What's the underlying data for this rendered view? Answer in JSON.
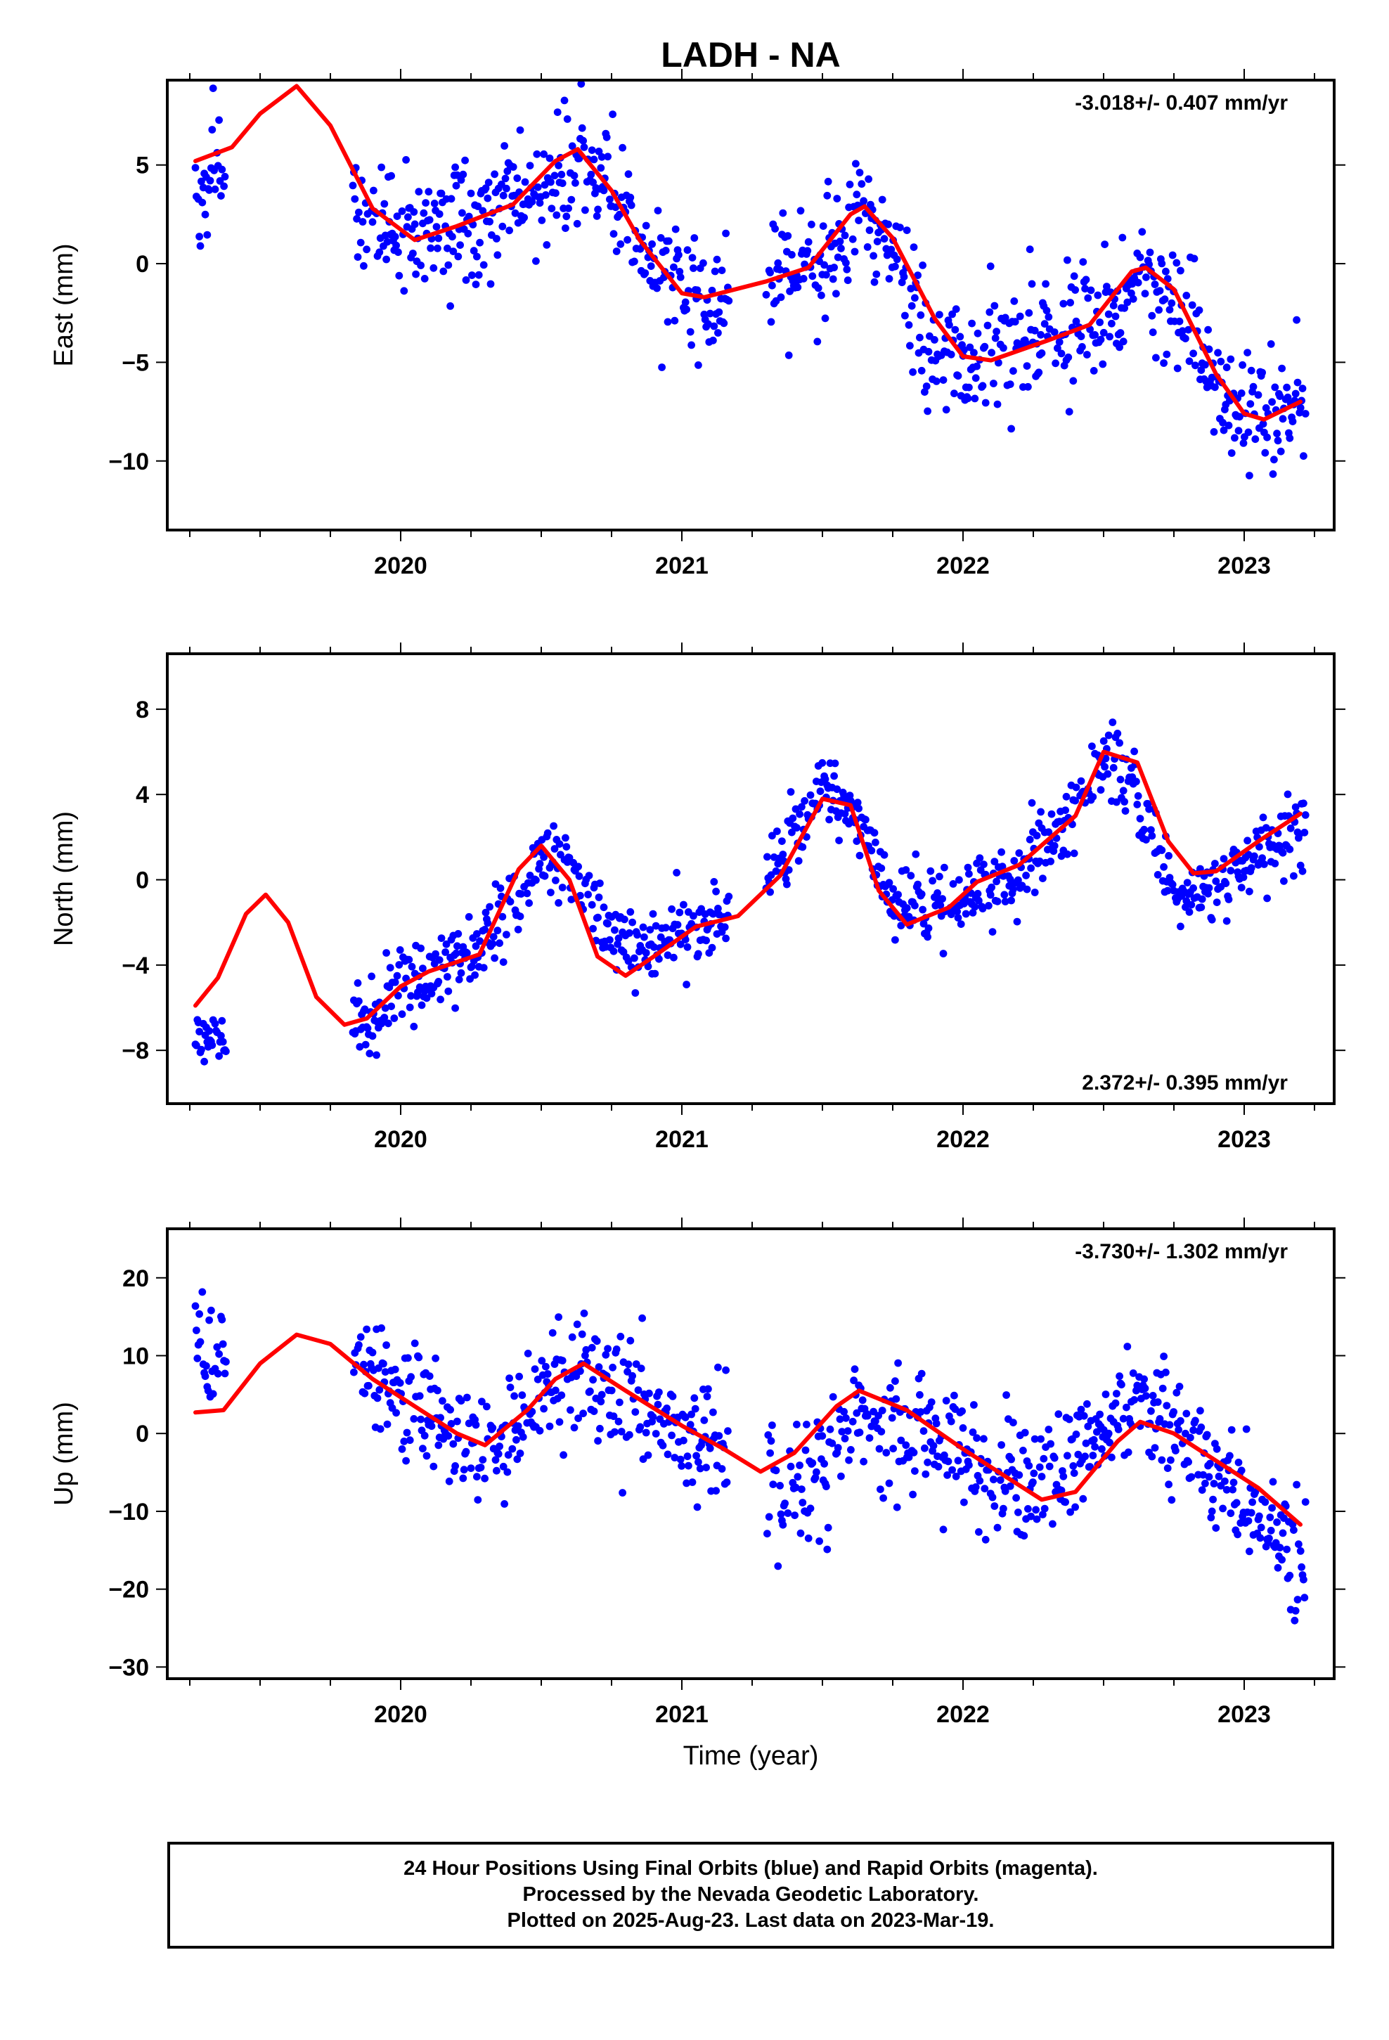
{
  "title": "LADH - NA",
  "chart_data": [
    {
      "type": "scatter",
      "component": "East",
      "ylabel": "East (mm)",
      "xlabel": "",
      "rate_text": "-3.018+/- 0.407 mm/yr",
      "rate_position": "top-right",
      "xlim": [
        2019.17,
        2023.32
      ],
      "ylim": [
        -13.5,
        9.3
      ],
      "yticks": [
        -10,
        -5,
        0,
        5
      ],
      "yticklabels": [
        "−10",
        "−5",
        "0",
        "5"
      ],
      "xticks": [
        2020,
        2021,
        2022,
        2023
      ],
      "xticklabels": [
        "2020",
        "2021",
        "2022",
        "2023"
      ],
      "series": [
        {
          "kind": "points",
          "color": "#0000ff",
          "segments": [
            [
              2019.27,
              2019.38
            ],
            [
              2019.83,
              2021.17
            ],
            [
              2021.3,
              2023.22
            ]
          ],
          "x": [
            2019.3,
            2019.35,
            2019.9,
            2020.0,
            2020.1,
            2020.3,
            2020.5,
            2020.65,
            2020.75,
            2020.9,
            2021.05,
            2021.15,
            2021.35,
            2021.5,
            2021.62,
            2021.75,
            2021.85,
            2022.0,
            2022.15,
            2022.35,
            2022.5,
            2022.62,
            2022.75,
            2022.9,
            2023.05,
            2023.2
          ],
          "y": [
            3.5,
            5.0,
            2.5,
            1.2,
            2.0,
            2.6,
            4.0,
            5.5,
            3.5,
            0.0,
            -1.5,
            -2.5,
            -0.8,
            0.0,
            2.6,
            1.0,
            -3.5,
            -4.8,
            -4.5,
            -3.5,
            -2.5,
            -0.2,
            -2.0,
            -6.0,
            -8.0,
            -7.0
          ],
          "spread": 2.0
        },
        {
          "kind": "curve",
          "color": "#ff0000",
          "x": [
            2019.27,
            2019.4,
            2019.5,
            2019.63,
            2019.75,
            2019.9,
            2020.05,
            2020.2,
            2020.4,
            2020.55,
            2020.63,
            2020.75,
            2020.85,
            2021.0,
            2021.08,
            2021.3,
            2021.45,
            2021.6,
            2021.65,
            2021.75,
            2021.9,
            2022.0,
            2022.1,
            2022.3,
            2022.45,
            2022.6,
            2022.65,
            2022.75,
            2022.9,
            2023.0,
            2023.07,
            2023.2
          ],
          "y": [
            5.2,
            5.9,
            7.6,
            9.0,
            7.0,
            2.8,
            1.2,
            1.9,
            3.0,
            5.2,
            5.8,
            3.7,
            1.2,
            -1.5,
            -1.7,
            -0.9,
            -0.2,
            2.5,
            2.9,
            1.3,
            -2.8,
            -4.7,
            -4.9,
            -3.9,
            -3.1,
            -0.4,
            -0.2,
            -1.3,
            -5.6,
            -7.6,
            -7.9,
            -7.0
          ]
        }
      ]
    },
    {
      "type": "scatter",
      "component": "North",
      "ylabel": "North (mm)",
      "xlabel": "",
      "rate_text": "2.372+/- 0.395 mm/yr",
      "rate_position": "bottom-right",
      "xlim": [
        2019.17,
        2023.32
      ],
      "ylim": [
        -10.5,
        10.6
      ],
      "yticks": [
        -8,
        -4,
        0,
        4,
        8
      ],
      "yticklabels": [
        "−8",
        "−4",
        "0",
        "4",
        "8"
      ],
      "xticks": [
        2020,
        2021,
        2022,
        2023
      ],
      "xticklabels": [
        "2020",
        "2021",
        "2022",
        "2023"
      ],
      "series": [
        {
          "kind": "points",
          "color": "#0000ff",
          "segments": [
            [
              2019.27,
              2019.38
            ],
            [
              2019.83,
              2021.17
            ],
            [
              2021.3,
              2023.22
            ]
          ],
          "x": [
            2019.3,
            2019.35,
            2019.9,
            2020.0,
            2020.2,
            2020.35,
            2020.5,
            2020.6,
            2020.75,
            2020.9,
            2021.05,
            2021.15,
            2021.35,
            2021.5,
            2021.6,
            2021.75,
            2021.9,
            2022.1,
            2022.3,
            2022.5,
            2022.6,
            2022.75,
            2022.9,
            2023.05,
            2023.2
          ],
          "y": [
            -7.5,
            -7.0,
            -6.5,
            -5.0,
            -3.8,
            -2.0,
            1.0,
            0.5,
            -3.0,
            -3.0,
            -2.0,
            -1.5,
            1.0,
            4.5,
            3.5,
            -1.0,
            -1.5,
            -0.5,
            1.5,
            5.5,
            4.5,
            -0.5,
            -0.5,
            1.0,
            2.5
          ],
          "spread": 1.1
        },
        {
          "kind": "curve",
          "color": "#ff0000",
          "x": [
            2019.27,
            2019.35,
            2019.45,
            2019.52,
            2019.6,
            2019.7,
            2019.8,
            2019.88,
            2020.0,
            2020.1,
            2020.28,
            2020.42,
            2020.5,
            2020.6,
            2020.7,
            2020.8,
            2020.9,
            2021.05,
            2021.2,
            2021.35,
            2021.5,
            2021.6,
            2021.7,
            2021.8,
            2021.95,
            2022.05,
            2022.2,
            2022.4,
            2022.5,
            2022.62,
            2022.73,
            2022.82,
            2022.9,
            2023.05,
            2023.2
          ],
          "y": [
            -5.9,
            -4.6,
            -1.6,
            -0.7,
            -2.0,
            -5.5,
            -6.8,
            -6.5,
            -5.0,
            -4.3,
            -3.5,
            0.5,
            1.6,
            0.0,
            -3.6,
            -4.5,
            -3.6,
            -2.2,
            -1.7,
            0.2,
            3.8,
            3.5,
            -0.5,
            -2.1,
            -1.3,
            -0.1,
            0.7,
            3.0,
            6.0,
            5.5,
            1.8,
            0.3,
            0.4,
            1.8,
            3.1
          ]
        }
      ]
    },
    {
      "type": "scatter",
      "component": "Up",
      "ylabel": "Up (mm)",
      "xlabel": "Time (year)",
      "rate_text": "-3.730+/- 1.302 mm/yr",
      "rate_position": "top-right",
      "xlim": [
        2019.17,
        2023.32
      ],
      "ylim": [
        -31.5,
        26.3
      ],
      "yticks": [
        -30,
        -20,
        -10,
        0,
        10,
        20
      ],
      "yticklabels": [
        "−30",
        "−20",
        "−10",
        "0",
        "10",
        "20"
      ],
      "xticks": [
        2020,
        2021,
        2022,
        2023
      ],
      "xticklabels": [
        "2020",
        "2021",
        "2022",
        "2023"
      ],
      "series": [
        {
          "kind": "points",
          "color": "#0000ff",
          "segments": [
            [
              2019.27,
              2019.38
            ],
            [
              2019.83,
              2021.17
            ],
            [
              2021.3,
              2023.22
            ]
          ],
          "x": [
            2019.3,
            2019.35,
            2019.9,
            2020.0,
            2020.15,
            2020.3,
            2020.5,
            2020.65,
            2020.8,
            2021.0,
            2021.15,
            2021.35,
            2021.5,
            2021.65,
            2021.8,
            2022.0,
            2022.2,
            2022.35,
            2022.55,
            2022.65,
            2022.8,
            2022.95,
            2023.1,
            2023.2
          ],
          "y": [
            10.0,
            12.0,
            8.0,
            6.0,
            1.0,
            -3.0,
            4.0,
            8.0,
            4.0,
            0.0,
            -2.0,
            -7.0,
            -3.0,
            3.0,
            0.0,
            -3.0,
            -6.0,
            -5.0,
            3.0,
            3.0,
            -2.0,
            -6.0,
            -12.0,
            -17.0
          ],
          "spread": 5.0
        },
        {
          "kind": "curve",
          "color": "#ff0000",
          "x": [
            2019.27,
            2019.37,
            2019.5,
            2019.63,
            2019.75,
            2019.9,
            2020.05,
            2020.2,
            2020.3,
            2020.45,
            2020.55,
            2020.65,
            2020.8,
            2021.0,
            2021.15,
            2021.28,
            2021.4,
            2021.55,
            2021.63,
            2021.8,
            2022.0,
            2022.15,
            2022.28,
            2022.4,
            2022.55,
            2022.63,
            2022.75,
            2022.9,
            2023.05,
            2023.2
          ],
          "y": [
            2.7,
            3.0,
            9.0,
            12.7,
            11.5,
            7.0,
            3.5,
            0.0,
            -1.5,
            3.0,
            7.0,
            9.0,
            5.5,
            1.0,
            -2.0,
            -4.9,
            -2.5,
            3.5,
            5.5,
            3.0,
            -2.0,
            -5.5,
            -8.5,
            -7.5,
            -1.0,
            1.5,
            0.0,
            -3.5,
            -7.0,
            -11.7
          ]
        }
      ]
    }
  ],
  "footer": {
    "line1": "24 Hour Positions Using Final Orbits (blue) and Rapid Orbits (magenta).",
    "line2": "Processed by the Nevada Geodetic Laboratory.",
    "line3": "Plotted on 2025-Aug-23. Last data on 2023-Mar-19."
  }
}
